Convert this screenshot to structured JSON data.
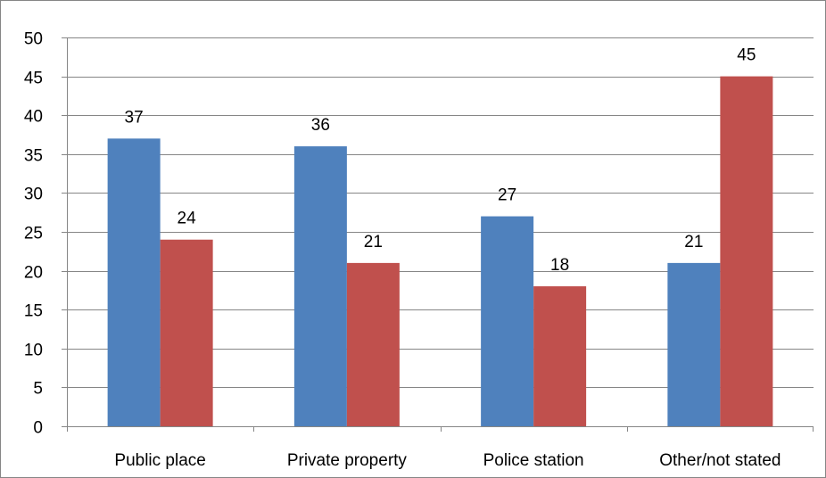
{
  "chart_data": {
    "type": "bar",
    "categories": [
      "Public place",
      "Private property",
      "Police station",
      "Other/not stated"
    ],
    "series": [
      {
        "values": [
          37,
          36,
          27,
          21
        ],
        "color": "#4f81bd"
      },
      {
        "values": [
          24,
          21,
          18,
          45
        ],
        "color": "#c0504d"
      }
    ],
    "ylim": [
      0,
      50
    ],
    "yticks": [
      0,
      5,
      10,
      15,
      20,
      25,
      30,
      35,
      40,
      45,
      50
    ],
    "grid": true,
    "data_labels": true,
    "legend": "none",
    "colors": {
      "grid": "#868686",
      "axis": "#868686",
      "text": "#000000"
    }
  }
}
